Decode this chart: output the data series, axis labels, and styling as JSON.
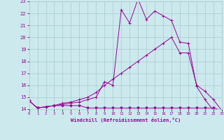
{
  "xlabel": "Windchill (Refroidissement éolien,°C)",
  "xlim": [
    0,
    23
  ],
  "ylim": [
    14,
    23
  ],
  "yticks": [
    14,
    15,
    16,
    17,
    18,
    19,
    20,
    21,
    22,
    23
  ],
  "xticks": [
    0,
    1,
    2,
    3,
    4,
    5,
    6,
    7,
    8,
    9,
    10,
    11,
    12,
    13,
    14,
    15,
    16,
    17,
    18,
    19,
    20,
    21,
    22,
    23
  ],
  "background_color": "#cce9ed",
  "line_color": "#990099",
  "grid_color": "#aacccc",
  "line1_x": [
    0,
    1,
    2,
    3,
    4,
    5,
    6,
    7,
    8,
    9,
    10,
    11,
    12,
    13,
    14,
    15,
    16,
    17,
    18,
    19,
    20,
    21,
    22,
    23
  ],
  "line1_y": [
    14.7,
    14.1,
    14.2,
    14.3,
    14.3,
    14.3,
    14.3,
    14.1,
    14.1,
    14.1,
    14.1,
    14.1,
    14.1,
    14.1,
    14.1,
    14.1,
    14.1,
    14.1,
    14.1,
    14.1,
    14.1,
    14.1,
    14.1,
    13.9
  ],
  "line2_x": [
    0,
    1,
    2,
    3,
    4,
    5,
    6,
    7,
    8,
    9,
    10,
    11,
    12,
    13,
    14,
    15,
    16,
    17,
    18,
    19,
    20,
    21,
    22,
    23
  ],
  "line2_y": [
    14.7,
    14.1,
    14.2,
    14.3,
    14.4,
    14.5,
    14.6,
    14.8,
    15.0,
    16.3,
    16.0,
    22.3,
    21.2,
    23.2,
    21.5,
    22.2,
    21.8,
    21.4,
    19.6,
    19.5,
    15.9,
    14.8,
    13.9,
    13.9
  ],
  "line3_x": [
    0,
    1,
    2,
    3,
    4,
    5,
    6,
    7,
    8,
    9,
    10,
    11,
    12,
    13,
    14,
    15,
    16,
    17,
    18,
    19,
    20,
    21,
    22,
    23
  ],
  "line3_y": [
    14.7,
    14.1,
    14.2,
    14.3,
    14.5,
    14.6,
    14.8,
    15.0,
    15.4,
    16.0,
    16.5,
    17.0,
    17.5,
    18.0,
    18.5,
    19.0,
    19.5,
    20.0,
    18.7,
    18.7,
    16.0,
    15.5,
    14.8,
    13.9
  ]
}
